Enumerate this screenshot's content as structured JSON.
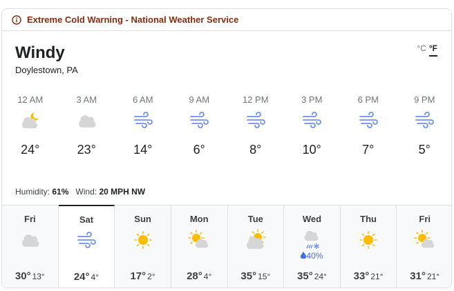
{
  "alert": {
    "icon": "info-icon",
    "text": "Extreme Cold Warning - National Weather Service",
    "color": "#8a2a0b"
  },
  "current": {
    "condition": "Windy",
    "location": "Doylestown, PA",
    "unit_c": "°C",
    "unit_f": "°F",
    "selected_unit": "°F",
    "humidity_label": "Humidity:",
    "humidity": "61%",
    "wind_label": "Wind:",
    "wind": "20 MPH NW"
  },
  "hourly": [
    {
      "time": "12 AM",
      "icon": "moon-cloud",
      "temp": "24°"
    },
    {
      "time": "3 AM",
      "icon": "cloud",
      "temp": "23°"
    },
    {
      "time": "6 AM",
      "icon": "wind",
      "temp": "14°"
    },
    {
      "time": "9 AM",
      "icon": "wind",
      "temp": "6°"
    },
    {
      "time": "12 PM",
      "icon": "wind",
      "temp": "8°"
    },
    {
      "time": "3 PM",
      "icon": "wind",
      "temp": "10°"
    },
    {
      "time": "6 PM",
      "icon": "wind",
      "temp": "7°"
    },
    {
      "time": "9 PM",
      "icon": "wind",
      "temp": "5°"
    }
  ],
  "daily": [
    {
      "day": "Fri",
      "icon": "cloud",
      "precip": "",
      "high": "30°",
      "low": "13°"
    },
    {
      "day": "Sat",
      "icon": "wind",
      "precip": "",
      "high": "24°",
      "low": "4°",
      "selected": true
    },
    {
      "day": "Sun",
      "icon": "sun",
      "precip": "",
      "high": "17°",
      "low": "2°"
    },
    {
      "day": "Mon",
      "icon": "sun-cloud",
      "precip": "",
      "high": "28°",
      "low": "4°"
    },
    {
      "day": "Tue",
      "icon": "cloud-sun",
      "precip": "",
      "high": "35°",
      "low": "15°"
    },
    {
      "day": "Wed",
      "icon": "snow",
      "precip": "40%",
      "high": "35°",
      "low": "24°"
    },
    {
      "day": "Thu",
      "icon": "sun",
      "precip": "",
      "high": "33°",
      "low": "21°"
    },
    {
      "day": "Fri",
      "icon": "sun-cloud",
      "precip": "",
      "high": "31°",
      "low": "21°"
    }
  ],
  "colors": {
    "wind": "#6f8ff0",
    "sun": "#fbbc04",
    "cloud": "#d6d6d6"
  }
}
